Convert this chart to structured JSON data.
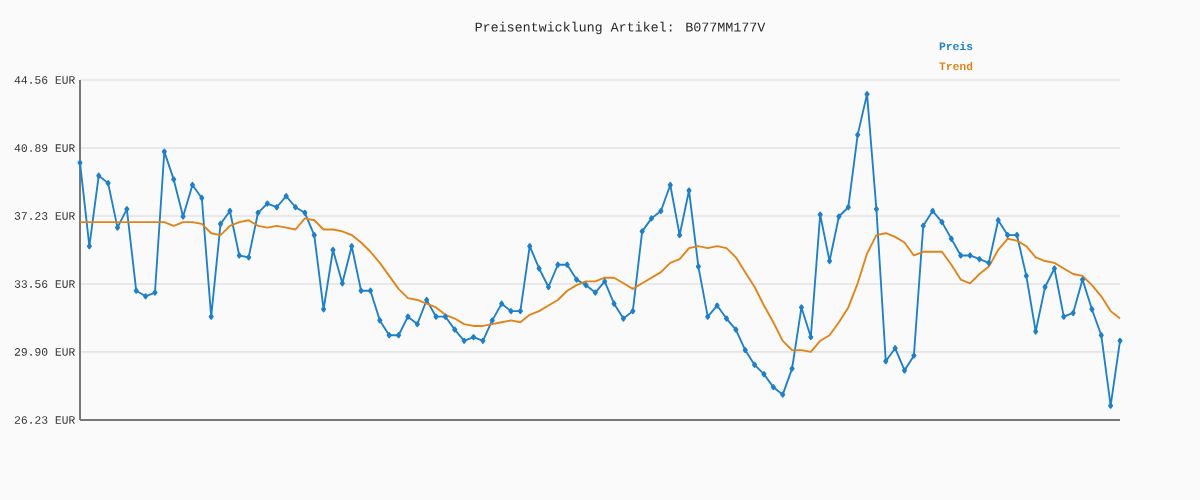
{
  "chart_data": {
    "type": "line",
    "title": "Preisentwicklung Artikel: B077MM177V",
    "categories": [
      null,
      null,
      null,
      null,
      null,
      null,
      null,
      null,
      null,
      null,
      null,
      null,
      null,
      null,
      null,
      null,
      null,
      null,
      null,
      null,
      null,
      null,
      null,
      null,
      null,
      null,
      null,
      null,
      null,
      null,
      null,
      null,
      null,
      null,
      null,
      null,
      null,
      null,
      null,
      null,
      null,
      null,
      null,
      null,
      null,
      null,
      null,
      null,
      null,
      null,
      null,
      null,
      null,
      null,
      null,
      null,
      null,
      null,
      null,
      null,
      null,
      null,
      null,
      null,
      null,
      null,
      null,
      null,
      null,
      null,
      null,
      null,
      null,
      null,
      null,
      null,
      null,
      null,
      null,
      null,
      null,
      null,
      null,
      null,
      null,
      null,
      null,
      null,
      null,
      null,
      null,
      null,
      null,
      null,
      null,
      null,
      null,
      null,
      null,
      null,
      null,
      null,
      null,
      null,
      null,
      null,
      null,
      null,
      null,
      null,
      null,
      null
    ],
    "series": [
      {
        "name": "Preis",
        "color": "#1f80c8",
        "marker": "diamond",
        "values": [
          40.1,
          35.6,
          39.4,
          39.0,
          36.6,
          37.6,
          33.2,
          32.9,
          33.1,
          40.7,
          39.2,
          37.2,
          38.9,
          38.2,
          31.8,
          36.8,
          37.5,
          35.1,
          35.0,
          37.4,
          37.9,
          37.7,
          38.3,
          37.7,
          37.4,
          36.2,
          32.2,
          35.4,
          33.6,
          35.6,
          33.2,
          33.2,
          31.6,
          30.8,
          30.8,
          31.8,
          31.4,
          32.7,
          31.8,
          31.8,
          31.1,
          30.5,
          30.7,
          30.5,
          31.6,
          32.5,
          32.1,
          32.1,
          35.6,
          34.4,
          33.4,
          34.6,
          34.6,
          33.8,
          33.5,
          33.1,
          33.7,
          32.5,
          31.7,
          32.1,
          36.4,
          37.1,
          37.5,
          38.9,
          36.2,
          38.6,
          34.5,
          31.8,
          32.4,
          31.7,
          31.1,
          30.0,
          29.2,
          28.7,
          28.0,
          27.6,
          29.0,
          32.3,
          30.7,
          37.3,
          34.8,
          37.2,
          37.7,
          41.6,
          43.8,
          37.6,
          29.4,
          30.1,
          28.9,
          29.7,
          36.7,
          37.5,
          36.9,
          36.0,
          35.1,
          35.1,
          34.9,
          34.7,
          37.0,
          36.2,
          36.2,
          34.0,
          31.0,
          33.4,
          34.4,
          31.8,
          32.0,
          33.8,
          32.2,
          30.8,
          27.0,
          30.5
        ]
      },
      {
        "name": "Trend",
        "color": "#e0841a",
        "marker": "none",
        "values": [
          36.9,
          36.9,
          36.9,
          36.9,
          36.9,
          36.9,
          36.9,
          36.9,
          36.9,
          36.9,
          36.7,
          36.9,
          36.9,
          36.8,
          36.3,
          36.2,
          36.7,
          36.9,
          37.0,
          36.7,
          36.6,
          36.7,
          36.6,
          36.5,
          37.1,
          37.0,
          36.5,
          36.5,
          36.4,
          36.2,
          35.8,
          35.3,
          34.7,
          34.0,
          33.3,
          32.8,
          32.7,
          32.5,
          32.3,
          31.9,
          31.7,
          31.4,
          31.3,
          31.3,
          31.4,
          31.5,
          31.6,
          31.5,
          31.9,
          32.1,
          32.4,
          32.7,
          33.2,
          33.5,
          33.7,
          33.7,
          33.9,
          33.9,
          33.6,
          33.3,
          33.6,
          33.9,
          34.2,
          34.7,
          34.9,
          35.5,
          35.6,
          35.5,
          35.6,
          35.5,
          35.0,
          34.2,
          33.4,
          32.4,
          31.5,
          30.5,
          30.0,
          30.0,
          29.9,
          30.5,
          30.8,
          31.5,
          32.3,
          33.6,
          35.2,
          36.2,
          36.3,
          36.1,
          35.8,
          35.1,
          35.3,
          35.3,
          35.3,
          34.6,
          33.8,
          33.6,
          34.1,
          34.5,
          35.4,
          36.0,
          35.9,
          35.6,
          35.0,
          34.8,
          34.7,
          34.4,
          34.1,
          34.0,
          33.5,
          32.9,
          32.1,
          31.7
        ]
      }
    ],
    "ylim": [
      26.23,
      44.56
    ],
    "yticks": [
      {
        "value": 26.23,
        "label": "26.23 EUR"
      },
      {
        "value": 29.9,
        "label": "29.90 EUR"
      },
      {
        "value": 33.56,
        "label": "33.56 EUR"
      },
      {
        "value": 37.23,
        "label": "37.23 EUR"
      },
      {
        "value": 40.89,
        "label": "40.89 EUR"
      },
      {
        "value": 44.56,
        "label": "44.56 EUR"
      }
    ],
    "grid": "y",
    "legend": "top right",
    "tick_labels": "y"
  }
}
